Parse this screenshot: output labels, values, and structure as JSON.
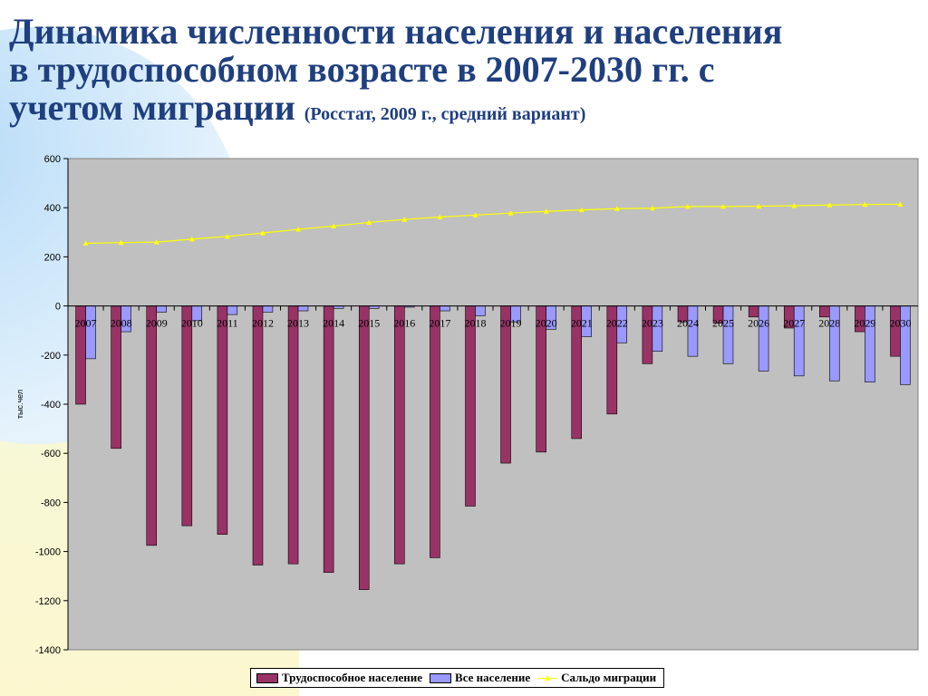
{
  "slide": {
    "title_line1": "Динамика численности населения и населения",
    "title_line2": "в трудоспособном возрасте в 2007-2030 гг. с",
    "title_line3": "учетом миграции",
    "subtitle": "(Росстат, 2009 г., средний вариант)"
  },
  "colors": {
    "title": "#1f3f7f",
    "plot_background": "#c0c0c0",
    "working_age": "#993366",
    "total_population": "#9999ff",
    "migration": "#ffff00"
  },
  "chart_data": {
    "type": "bar",
    "title": "",
    "xlabel": "",
    "ylabel": "тыс.чел",
    "ylim": [
      -1400,
      600
    ],
    "yticks": [
      600,
      400,
      200,
      0,
      -200,
      -400,
      -600,
      -800,
      -1000,
      -1200,
      -1400
    ],
    "grid": false,
    "legend_position": "bottom",
    "categories": [
      "2007",
      "2008",
      "2009",
      "2010",
      "2011",
      "2012",
      "2013",
      "2014",
      "2015",
      "2016",
      "2017",
      "2018",
      "2019",
      "2020",
      "2021",
      "2022",
      "2023",
      "2024",
      "2025",
      "2026",
      "2027",
      "2028",
      "2029",
      "2030"
    ],
    "series": [
      {
        "name": "Трудоспособное население",
        "type": "bar",
        "values": [
          -400,
          -580,
          -975,
          -895,
          -930,
          -1055,
          -1050,
          -1085,
          -1155,
          -1050,
          -1025,
          -815,
          -640,
          -595,
          -540,
          -440,
          -235,
          -65,
          -70,
          -45,
          -90,
          -45,
          -105,
          -205
        ]
      },
      {
        "name": "Все население",
        "type": "bar",
        "values": [
          -215,
          -105,
          -25,
          -60,
          -35,
          -25,
          -20,
          -10,
          -10,
          -5,
          -20,
          -40,
          -65,
          -95,
          -125,
          -150,
          -185,
          -205,
          -235,
          -265,
          -285,
          -305,
          -310,
          -320
        ]
      },
      {
        "name": "Сальдо миграции",
        "type": "line",
        "values": [
          255,
          258,
          260,
          272,
          283,
          297,
          312,
          325,
          340,
          352,
          362,
          370,
          378,
          385,
          391,
          396,
          398,
          405,
          405,
          406,
          408,
          411,
          413,
          414
        ]
      }
    ]
  }
}
